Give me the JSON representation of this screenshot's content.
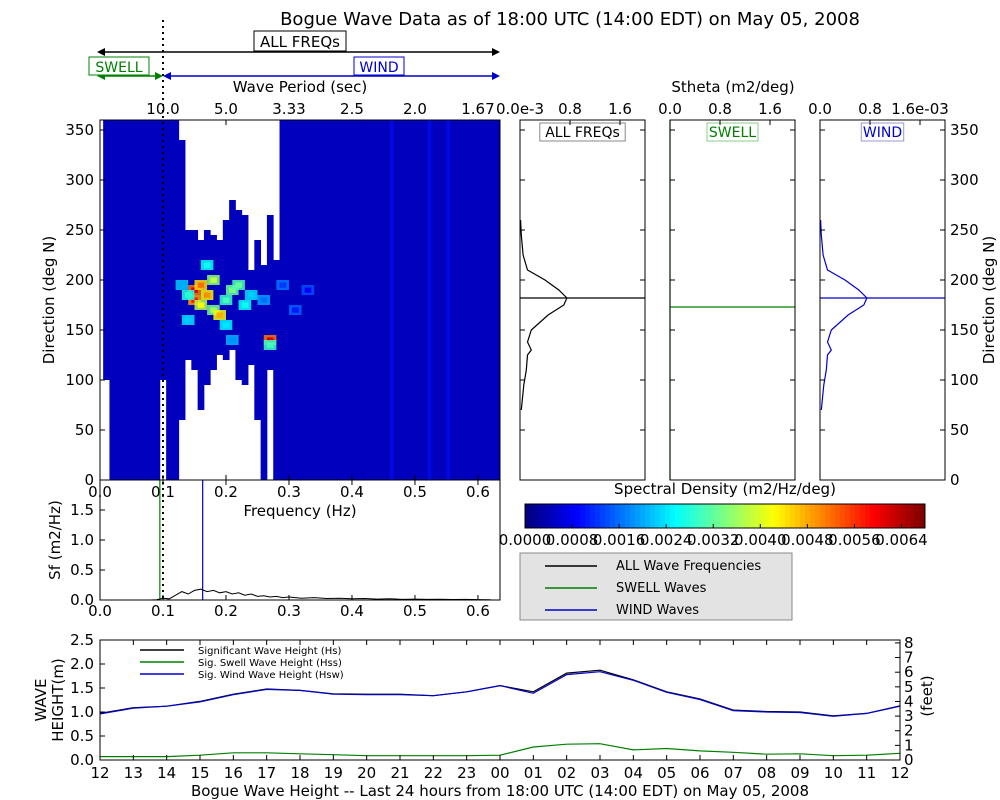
{
  "title": "Bogue Wave Data as of 18:00 UTC (14:00 EDT) on May 05, 2008",
  "band_labels": {
    "all": "ALL FREQs",
    "swell": "SWELL",
    "wind": "WIND"
  },
  "colors": {
    "all": "#000000",
    "swell": "#008000",
    "wind": "#0000cc"
  },
  "chart_data": [
    {
      "id": "directional-spectrum",
      "type": "heatmap",
      "xlabel": "Frequency (Hz)",
      "ylabel": "Direction (deg N)",
      "top_axis_label": "Wave Period (sec)",
      "xlim": [
        0.0,
        0.635
      ],
      "ylim": [
        0,
        360
      ],
      "xticks": [
        0.0,
        0.1,
        0.2,
        0.3,
        0.4,
        0.5,
        0.6
      ],
      "yticks": [
        0,
        50,
        100,
        150,
        200,
        250,
        300,
        350
      ],
      "top_ticks": [
        {
          "freq": 0.1,
          "label": "10.0"
        },
        {
          "freq": 0.2,
          "label": "5.0"
        },
        {
          "freq": 0.3,
          "label": "3.33"
        },
        {
          "freq": 0.4,
          "label": "2.5"
        },
        {
          "freq": 0.5,
          "label": "2.0"
        },
        {
          "freq": 0.6,
          "label": "1.67"
        }
      ],
      "swell_wind_separation_hz": 0.1,
      "cells_hz_step": 0.01,
      "cells_deg_step": 5,
      "coverage": [
        {
          "f": 0.01,
          "d0": 100,
          "d1": 360
        },
        {
          "f": 0.02,
          "d0": 0,
          "d1": 360
        },
        {
          "f": 0.03,
          "d0": 0,
          "d1": 360
        },
        {
          "f": 0.04,
          "d0": 0,
          "d1": 360
        },
        {
          "f": 0.05,
          "d0": 0,
          "d1": 360
        },
        {
          "f": 0.06,
          "d0": 0,
          "d1": 360
        },
        {
          "f": 0.07,
          "d0": 0,
          "d1": 360
        },
        {
          "f": 0.08,
          "d0": 0,
          "d1": 360
        },
        {
          "f": 0.09,
          "d0": 0,
          "d1": 360
        },
        {
          "f": 0.1,
          "d0": 100,
          "d1": 360
        },
        {
          "f": 0.11,
          "d0": 0,
          "d1": 360
        },
        {
          "f": 0.12,
          "d0": 0,
          "d1": 360
        },
        {
          "f": 0.13,
          "d0": 60,
          "d1": 340
        },
        {
          "f": 0.14,
          "d0": 120,
          "d1": 250
        },
        {
          "f": 0.15,
          "d0": 110,
          "d1": 250
        },
        {
          "f": 0.16,
          "d0": 70,
          "d1": 240
        },
        {
          "f": 0.17,
          "d0": 95,
          "d1": 250
        },
        {
          "f": 0.18,
          "d0": 110,
          "d1": 245
        },
        {
          "f": 0.19,
          "d0": 125,
          "d1": 240
        },
        {
          "f": 0.2,
          "d0": 120,
          "d1": 260
        },
        {
          "f": 0.21,
          "d0": 130,
          "d1": 280
        },
        {
          "f": 0.22,
          "d0": 100,
          "d1": 270
        },
        {
          "f": 0.23,
          "d0": 95,
          "d1": 265
        },
        {
          "f": 0.24,
          "d0": 115,
          "d1": 210
        },
        {
          "f": 0.25,
          "d0": 60,
          "d1": 240
        },
        {
          "f": 0.26,
          "d0": 0,
          "d1": 215
        },
        {
          "f": 0.27,
          "d0": 110,
          "d1": 265
        },
        {
          "f": 0.28,
          "d0": 0,
          "d1": 220
        },
        {
          "f": 0.29,
          "d0": 0,
          "d1": 360
        },
        {
          "f": 0.3,
          "d0": 0,
          "d1": 360
        },
        {
          "f": 0.31,
          "d0": 0,
          "d1": 360
        },
        {
          "f": 0.32,
          "d0": 0,
          "d1": 360
        },
        {
          "f": 0.33,
          "d0": 0,
          "d1": 360
        },
        {
          "f": 0.34,
          "d0": 0,
          "d1": 360
        },
        {
          "f": 0.35,
          "d0": 0,
          "d1": 360
        },
        {
          "f": 0.36,
          "d0": 0,
          "d1": 360
        },
        {
          "f": 0.37,
          "d0": 0,
          "d1": 360
        },
        {
          "f": 0.38,
          "d0": 0,
          "d1": 360
        },
        {
          "f": 0.39,
          "d0": 0,
          "d1": 360
        },
        {
          "f": 0.4,
          "d0": 0,
          "d1": 360
        },
        {
          "f": 0.41,
          "d0": 0,
          "d1": 360
        },
        {
          "f": 0.42,
          "d0": 0,
          "d1": 360
        },
        {
          "f": 0.43,
          "d0": 0,
          "d1": 360
        },
        {
          "f": 0.44,
          "d0": 0,
          "d1": 360
        },
        {
          "f": 0.45,
          "d0": 0,
          "d1": 360
        },
        {
          "f": 0.46,
          "d0": 0,
          "d1": 360
        },
        {
          "f": 0.47,
          "d0": 0,
          "d1": 360
        },
        {
          "f": 0.48,
          "d0": 0,
          "d1": 360
        },
        {
          "f": 0.49,
          "d0": 0,
          "d1": 360
        },
        {
          "f": 0.5,
          "d0": 0,
          "d1": 360
        },
        {
          "f": 0.51,
          "d0": 0,
          "d1": 360
        },
        {
          "f": 0.52,
          "d0": 0,
          "d1": 360
        },
        {
          "f": 0.53,
          "d0": 0,
          "d1": 360
        },
        {
          "f": 0.54,
          "d0": 0,
          "d1": 360
        },
        {
          "f": 0.55,
          "d0": 0,
          "d1": 360
        },
        {
          "f": 0.56,
          "d0": 0,
          "d1": 360
        },
        {
          "f": 0.57,
          "d0": 0,
          "d1": 360
        },
        {
          "f": 0.58,
          "d0": 0,
          "d1": 360
        },
        {
          "f": 0.59,
          "d0": 0,
          "d1": 360
        },
        {
          "f": 0.6,
          "d0": 0,
          "d1": 360
        },
        {
          "f": 0.61,
          "d0": 0,
          "d1": 360
        },
        {
          "f": 0.62,
          "d0": 0,
          "d1": 360
        },
        {
          "f": 0.63,
          "d0": 0,
          "d1": 360
        }
      ],
      "hotspots": [
        {
          "f": 0.15,
          "d": 190,
          "value": 0.0062
        },
        {
          "f": 0.15,
          "d": 180,
          "value": 0.0058
        },
        {
          "f": 0.16,
          "d": 195,
          "value": 0.0052
        },
        {
          "f": 0.17,
          "d": 185,
          "value": 0.005
        },
        {
          "f": 0.16,
          "d": 175,
          "value": 0.0042
        },
        {
          "f": 0.18,
          "d": 200,
          "value": 0.0038
        },
        {
          "f": 0.18,
          "d": 170,
          "value": 0.0036
        },
        {
          "f": 0.19,
          "d": 165,
          "value": 0.0048
        },
        {
          "f": 0.2,
          "d": 180,
          "value": 0.003
        },
        {
          "f": 0.21,
          "d": 190,
          "value": 0.0034
        },
        {
          "f": 0.22,
          "d": 195,
          "value": 0.0032
        },
        {
          "f": 0.23,
          "d": 175,
          "value": 0.0026
        },
        {
          "f": 0.24,
          "d": 185,
          "value": 0.0022
        },
        {
          "f": 0.14,
          "d": 185,
          "value": 0.0028
        },
        {
          "f": 0.13,
          "d": 195,
          "value": 0.002
        },
        {
          "f": 0.14,
          "d": 160,
          "value": 0.0022
        },
        {
          "f": 0.2,
          "d": 155,
          "value": 0.0024
        },
        {
          "f": 0.17,
          "d": 215,
          "value": 0.0026
        },
        {
          "f": 0.21,
          "d": 140,
          "value": 0.0018
        },
        {
          "f": 0.26,
          "d": 180,
          "value": 0.0016
        },
        {
          "f": 0.27,
          "d": 140,
          "value": 0.0062
        },
        {
          "f": 0.27,
          "d": 135,
          "value": 0.003
        },
        {
          "f": 0.29,
          "d": 195,
          "value": 0.0012
        },
        {
          "f": 0.31,
          "d": 170,
          "value": 0.001
        },
        {
          "f": 0.33,
          "d": 190,
          "value": 0.0008
        }
      ]
    },
    {
      "id": "stheta-panels",
      "type": "line",
      "top_label": "Stheta (m2/deg)",
      "right_ylabel": "Direction (deg N)",
      "ylim": [
        0,
        360
      ],
      "yticks": [
        0,
        50,
        100,
        150,
        200,
        250,
        300,
        350
      ],
      "panels": [
        {
          "label": "ALL FREQs",
          "color": "#000000",
          "xticks": [
            "0.0e-3",
            "0.8",
            "1.6"
          ],
          "xlim": [
            0,
            2.0
          ],
          "mean_dir": 182,
          "series": [
            {
              "d": 70,
              "x": 0.02
            },
            {
              "d": 95,
              "x": 0.06
            },
            {
              "d": 110,
              "x": 0.1
            },
            {
              "d": 125,
              "x": 0.12
            },
            {
              "d": 130,
              "x": 0.18
            },
            {
              "d": 138,
              "x": 0.12
            },
            {
              "d": 150,
              "x": 0.18
            },
            {
              "d": 165,
              "x": 0.45
            },
            {
              "d": 175,
              "x": 0.7
            },
            {
              "d": 182,
              "x": 0.75
            },
            {
              "d": 190,
              "x": 0.62
            },
            {
              "d": 200,
              "x": 0.4
            },
            {
              "d": 210,
              "x": 0.12
            },
            {
              "d": 225,
              "x": 0.05
            },
            {
              "d": 245,
              "x": 0.02
            },
            {
              "d": 260,
              "x": 0.01
            }
          ]
        },
        {
          "label": "SWELL",
          "color": "#008000",
          "xticks": [
            "0.0",
            "0.8",
            "1.6"
          ],
          "xlim": [
            0,
            2.0
          ],
          "mean_dir": 173,
          "series": [
            {
              "d": 0,
              "x": 0.0
            },
            {
              "d": 360,
              "x": 0.0
            }
          ]
        },
        {
          "label": "WIND",
          "color": "#0000cc",
          "xticks": [
            "0.0",
            "0.8",
            "1.6e-03"
          ],
          "xlim": [
            0,
            2.0
          ],
          "mean_dir": 182,
          "series": [
            {
              "d": 70,
              "x": 0.02
            },
            {
              "d": 95,
              "x": 0.06
            },
            {
              "d": 110,
              "x": 0.1
            },
            {
              "d": 125,
              "x": 0.12
            },
            {
              "d": 130,
              "x": 0.18
            },
            {
              "d": 138,
              "x": 0.12
            },
            {
              "d": 150,
              "x": 0.18
            },
            {
              "d": 165,
              "x": 0.45
            },
            {
              "d": 175,
              "x": 0.7
            },
            {
              "d": 182,
              "x": 0.75
            },
            {
              "d": 190,
              "x": 0.62
            },
            {
              "d": 200,
              "x": 0.4
            },
            {
              "d": 210,
              "x": 0.12
            },
            {
              "d": 225,
              "x": 0.05
            },
            {
              "d": 245,
              "x": 0.02
            },
            {
              "d": 260,
              "x": 0.01
            }
          ]
        }
      ]
    },
    {
      "id": "frequency-spectrum",
      "type": "line",
      "xlabel": "Frequency (Hz)",
      "ylabel": "Sf (m2/Hz)",
      "xlim": [
        0.0,
        0.635
      ],
      "ylim": [
        0.0,
        2.0
      ],
      "xticks": [
        0.0,
        0.1,
        0.2,
        0.3,
        0.4,
        0.5,
        0.6
      ],
      "yticks": [
        0.0,
        0.5,
        1.0,
        1.5
      ],
      "swell_sep_hz": 0.095,
      "wind_peak_hz": 0.163,
      "dotted_hz": 0.1,
      "x": [
        0.0,
        0.08,
        0.09,
        0.1,
        0.11,
        0.12,
        0.13,
        0.14,
        0.15,
        0.16,
        0.17,
        0.18,
        0.19,
        0.2,
        0.21,
        0.22,
        0.23,
        0.24,
        0.25,
        0.26,
        0.27,
        0.28,
        0.29,
        0.3,
        0.32,
        0.34,
        0.36,
        0.38,
        0.4,
        0.42,
        0.44,
        0.46,
        0.48,
        0.5,
        0.52,
        0.54,
        0.56,
        0.58,
        0.6,
        0.62
      ],
      "values": [
        0.0,
        0.0,
        0.005,
        0.03,
        0.02,
        0.08,
        0.14,
        0.1,
        0.16,
        0.18,
        0.14,
        0.16,
        0.12,
        0.14,
        0.1,
        0.12,
        0.08,
        0.1,
        0.06,
        0.07,
        0.05,
        0.06,
        0.04,
        0.05,
        0.03,
        0.04,
        0.025,
        0.03,
        0.02,
        0.025,
        0.015,
        0.02,
        0.01,
        0.015,
        0.01,
        0.012,
        0.008,
        0.01,
        0.006,
        0.005
      ]
    },
    {
      "id": "colorbar",
      "type": "heatmap",
      "label": "Spectral Density (m2/Hz/deg)",
      "range": [
        0.0,
        0.0068
      ],
      "ticks": [
        "0.0000",
        "0.0008",
        "0.0016",
        "0.0024",
        "0.0032",
        "0.0040",
        "0.0048",
        "0.0056",
        "0.0064"
      ]
    },
    {
      "id": "spectrum-legend",
      "type": "line",
      "entries": [
        {
          "label": "ALL Wave Frequencies",
          "color": "#000000"
        },
        {
          "label": "SWELL Waves",
          "color": "#008000"
        },
        {
          "label": "WIND Waves",
          "color": "#0000cc"
        }
      ]
    },
    {
      "id": "wave-height-history",
      "type": "line",
      "xlabel": "Bogue Wave Height -- Last 24 hours from 18:00 UTC (14:00 EDT) on May 05, 2008",
      "ylabel_left": "WAVE HEIGHT(m)",
      "ylabel_right": "(feet)",
      "ylim": [
        0.0,
        2.5
      ],
      "yticks": [
        0.0,
        0.5,
        1.0,
        1.5,
        2.0,
        2.5
      ],
      "right_ylim": [
        0,
        8.2
      ],
      "right_yticks": [
        0,
        1,
        2,
        3,
        4,
        5,
        6,
        7,
        8
      ],
      "categories": [
        "12",
        "13",
        "14",
        "15",
        "16",
        "17",
        "18",
        "19",
        "20",
        "21",
        "22",
        "23",
        "00",
        "01",
        "02",
        "03",
        "04",
        "05",
        "06",
        "07",
        "08",
        "09",
        "10",
        "11",
        "12"
      ],
      "series": [
        {
          "name": "Significant Wave Height (Hs)",
          "color": "#000000",
          "values": [
            0.97,
            1.09,
            1.12,
            1.22,
            1.37,
            1.48,
            1.45,
            1.38,
            1.37,
            1.37,
            1.34,
            1.42,
            1.55,
            1.42,
            1.81,
            1.87,
            1.67,
            1.42,
            1.27,
            1.04,
            1.01,
            1.0,
            0.92,
            0.97,
            1.13
          ]
        },
        {
          "name": "Sig. Swell Wave Height (Hss)",
          "color": "#008000",
          "values": [
            0.07,
            0.07,
            0.07,
            0.1,
            0.15,
            0.15,
            0.13,
            0.11,
            0.09,
            0.09,
            0.09,
            0.09,
            0.1,
            0.27,
            0.33,
            0.34,
            0.21,
            0.24,
            0.19,
            0.16,
            0.12,
            0.13,
            0.09,
            0.1,
            0.14
          ]
        },
        {
          "name": "Sig. Wind Wave Height (Hsw)",
          "color": "#0000cc",
          "values": [
            0.96,
            1.08,
            1.12,
            1.21,
            1.36,
            1.47,
            1.45,
            1.37,
            1.36,
            1.36,
            1.34,
            1.42,
            1.55,
            1.39,
            1.78,
            1.84,
            1.66,
            1.41,
            1.26,
            1.03,
            1.0,
            0.99,
            0.91,
            0.97,
            1.12
          ]
        }
      ]
    }
  ]
}
